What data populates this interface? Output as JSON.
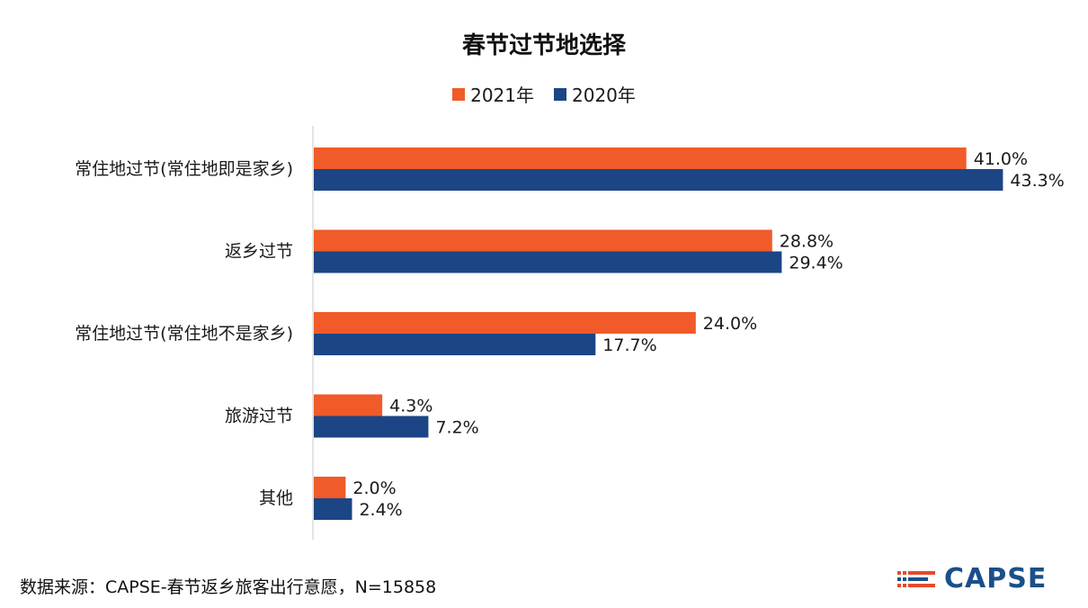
{
  "chart_data": {
    "type": "bar",
    "orientation": "horizontal",
    "title": "春节过节地选择",
    "categories": [
      "常住地过节(常住地即是家乡)",
      "返乡过节",
      "常住地过节(常住地不是家乡)",
      "旅游过节",
      "其他"
    ],
    "series": [
      {
        "name": "2021年",
        "color": "#f15a29",
        "values": [
          41.0,
          28.8,
          24.0,
          4.3,
          2.0
        ],
        "labels": [
          "41.0%",
          "28.8%",
          "24.0%",
          "4.3%",
          "2.0%"
        ]
      },
      {
        "name": "2020年",
        "color": "#1c4585",
        "values": [
          43.3,
          29.4,
          17.7,
          7.2,
          2.4
        ],
        "labels": [
          "43.3%",
          "29.4%",
          "17.7%",
          "7.2%",
          "2.4%"
        ]
      }
    ],
    "xlim": [
      0,
      50
    ],
    "grid": false,
    "legend_position": "top-center"
  },
  "footer": {
    "source": "数据来源：CAPSE-春节返乡旅客出行意愿，N=15858"
  },
  "logo": {
    "text": "CAPSE"
  }
}
